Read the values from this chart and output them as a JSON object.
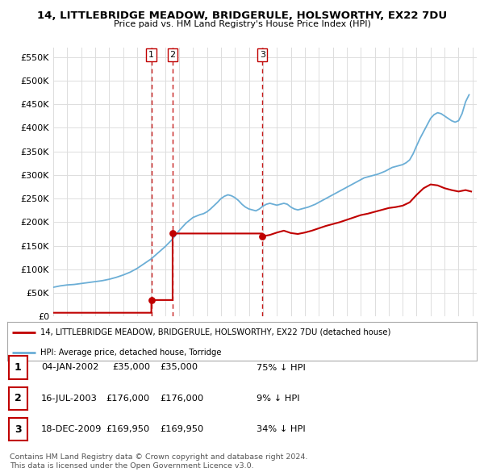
{
  "title": "14, LITTLEBRIDGE MEADOW, BRIDGERULE, HOLSWORTHY, EX22 7DU",
  "subtitle": "Price paid vs. HM Land Registry's House Price Index (HPI)",
  "ylabel_ticks": [
    "£0",
    "£50K",
    "£100K",
    "£150K",
    "£200K",
    "£250K",
    "£300K",
    "£350K",
    "£400K",
    "£450K",
    "£500K",
    "£550K"
  ],
  "ytick_vals": [
    0,
    50000,
    100000,
    150000,
    200000,
    250000,
    300000,
    350000,
    400000,
    450000,
    500000,
    550000
  ],
  "ylim": [
    0,
    570000
  ],
  "hpi_color": "#6baed6",
  "price_color": "#c00000",
  "vline_color": "#c00000",
  "sale_dates": [
    2002.02,
    2003.54,
    2009.96
  ],
  "sale_prices": [
    35000,
    176000,
    169950
  ],
  "sale_labels": [
    "1",
    "2",
    "3"
  ],
  "legend_line1": "14, LITTLEBRIDGE MEADOW, BRIDGERULE, HOLSWORTHY, EX22 7DU (detached house)",
  "legend_line2": "HPI: Average price, detached house, Torridge",
  "table_rows": [
    [
      "1",
      "04-JAN-2002",
      "£35,000",
      "75% ↓ HPI"
    ],
    [
      "2",
      "16-JUL-2003",
      "£176,000",
      "9% ↓ HPI"
    ],
    [
      "3",
      "18-DEC-2009",
      "£169,950",
      "34% ↓ HPI"
    ]
  ],
  "footnote1": "Contains HM Land Registry data © Crown copyright and database right 2024.",
  "footnote2": "This data is licensed under the Open Government Licence v3.0.",
  "background_color": "#ffffff",
  "grid_color": "#dddddd",
  "hpi_years": [
    1995,
    1995.5,
    1996,
    1996.5,
    1997,
    1997.5,
    1998,
    1998.5,
    1999,
    1999.5,
    2000,
    2000.5,
    2001,
    2001.5,
    2002,
    2002.5,
    2003,
    2003.5,
    2004,
    2004.5,
    2005,
    2005.25,
    2005.5,
    2005.75,
    2006,
    2006.25,
    2006.5,
    2006.75,
    2007,
    2007.25,
    2007.5,
    2007.75,
    2008,
    2008.25,
    2008.5,
    2008.75,
    2009,
    2009.25,
    2009.5,
    2009.75,
    2010,
    2010.25,
    2010.5,
    2010.75,
    2011,
    2011.25,
    2011.5,
    2011.75,
    2012,
    2012.25,
    2012.5,
    2012.75,
    2013,
    2013.25,
    2013.5,
    2013.75,
    2014,
    2014.25,
    2014.5,
    2014.75,
    2015,
    2015.25,
    2015.5,
    2015.75,
    2016,
    2016.25,
    2016.5,
    2016.75,
    2017,
    2017.25,
    2017.5,
    2017.75,
    2018,
    2018.25,
    2018.5,
    2018.75,
    2019,
    2019.25,
    2019.5,
    2019.75,
    2020,
    2020.25,
    2020.5,
    2020.75,
    2021,
    2021.25,
    2021.5,
    2021.75,
    2022,
    2022.25,
    2022.5,
    2022.75,
    2023,
    2023.25,
    2023.5,
    2023.75,
    2024,
    2024.25,
    2024.5,
    2024.75
  ],
  "hpi_values": [
    62000,
    65000,
    67000,
    68000,
    70000,
    72000,
    74000,
    76000,
    79000,
    83000,
    88000,
    94000,
    102000,
    112000,
    122000,
    135000,
    148000,
    163000,
    182000,
    198000,
    210000,
    213000,
    216000,
    218000,
    222000,
    228000,
    235000,
    242000,
    250000,
    255000,
    258000,
    256000,
    252000,
    246000,
    238000,
    232000,
    228000,
    226000,
    224000,
    228000,
    234000,
    238000,
    240000,
    238000,
    236000,
    238000,
    240000,
    238000,
    232000,
    228000,
    226000,
    228000,
    230000,
    232000,
    235000,
    238000,
    242000,
    246000,
    250000,
    254000,
    258000,
    262000,
    266000,
    270000,
    274000,
    278000,
    282000,
    286000,
    290000,
    294000,
    296000,
    298000,
    300000,
    302000,
    305000,
    308000,
    312000,
    316000,
    318000,
    320000,
    322000,
    326000,
    332000,
    345000,
    362000,
    378000,
    392000,
    406000,
    420000,
    428000,
    432000,
    430000,
    425000,
    420000,
    415000,
    412000,
    415000,
    430000,
    455000,
    470000
  ],
  "red_x": [
    1995.0,
    2002.0,
    2002.02,
    2002.02,
    2003.54,
    2003.54,
    2009.96,
    2009.96,
    2010.5,
    2011.0,
    2011.5,
    2012.0,
    2012.5,
    2013.0,
    2013.5,
    2014.0,
    2014.5,
    2015.0,
    2015.5,
    2016.0,
    2016.5,
    2017.0,
    2017.5,
    2018.0,
    2018.5,
    2019.0,
    2019.5,
    2020.0,
    2020.5,
    2021.0,
    2021.5,
    2022.0,
    2022.5,
    2023.0,
    2023.5,
    2024.0,
    2024.5,
    2024.9
  ],
  "red_y": [
    8000,
    8000,
    8000,
    35000,
    35000,
    176000,
    176000,
    169950,
    173000,
    178000,
    182000,
    177000,
    175000,
    178000,
    182000,
    187000,
    192000,
    196000,
    200000,
    205000,
    210000,
    215000,
    218000,
    222000,
    226000,
    230000,
    232000,
    235000,
    242000,
    258000,
    272000,
    280000,
    278000,
    272000,
    268000,
    265000,
    268000,
    265000
  ]
}
